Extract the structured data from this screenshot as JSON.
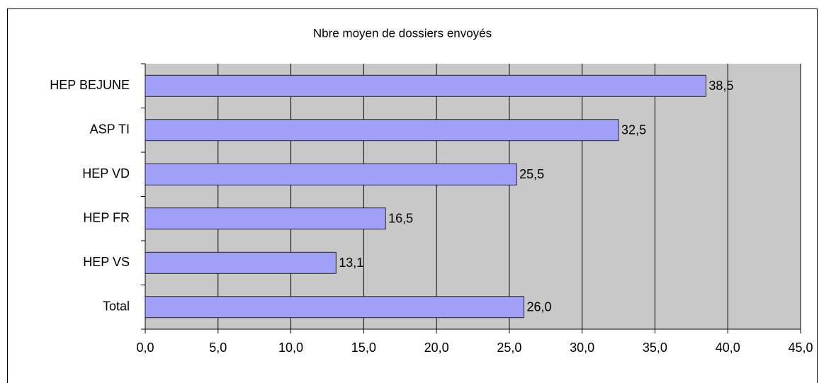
{
  "chart_data": {
    "type": "bar",
    "title": "Nbre moyen de dossiers envoyés",
    "categories": [
      "HEP BEJUNE",
      "ASP TI",
      "HEP VD",
      "HEP FR",
      "HEP VS",
      "Total"
    ],
    "values": [
      38.5,
      32.5,
      25.5,
      16.5,
      13.1,
      26.0
    ],
    "value_labels": [
      "38,5",
      "32,5",
      "25,5",
      "16,5",
      "13,1",
      "26,0"
    ],
    "color": "#a0a0f8",
    "xlim": [
      0,
      45
    ],
    "xticks": [
      {
        "value": 0,
        "label": "0,0"
      },
      {
        "value": 5,
        "label": "5,0"
      },
      {
        "value": 10,
        "label": "10,0"
      },
      {
        "value": 15,
        "label": "15,0"
      },
      {
        "value": 20,
        "label": "20,0"
      },
      {
        "value": 25,
        "label": "25,0"
      },
      {
        "value": 30,
        "label": "30,0"
      },
      {
        "value": 35,
        "label": "35,0"
      },
      {
        "value": 40,
        "label": "40,0"
      },
      {
        "value": 45,
        "label": "45,0"
      }
    ],
    "grid": true
  }
}
